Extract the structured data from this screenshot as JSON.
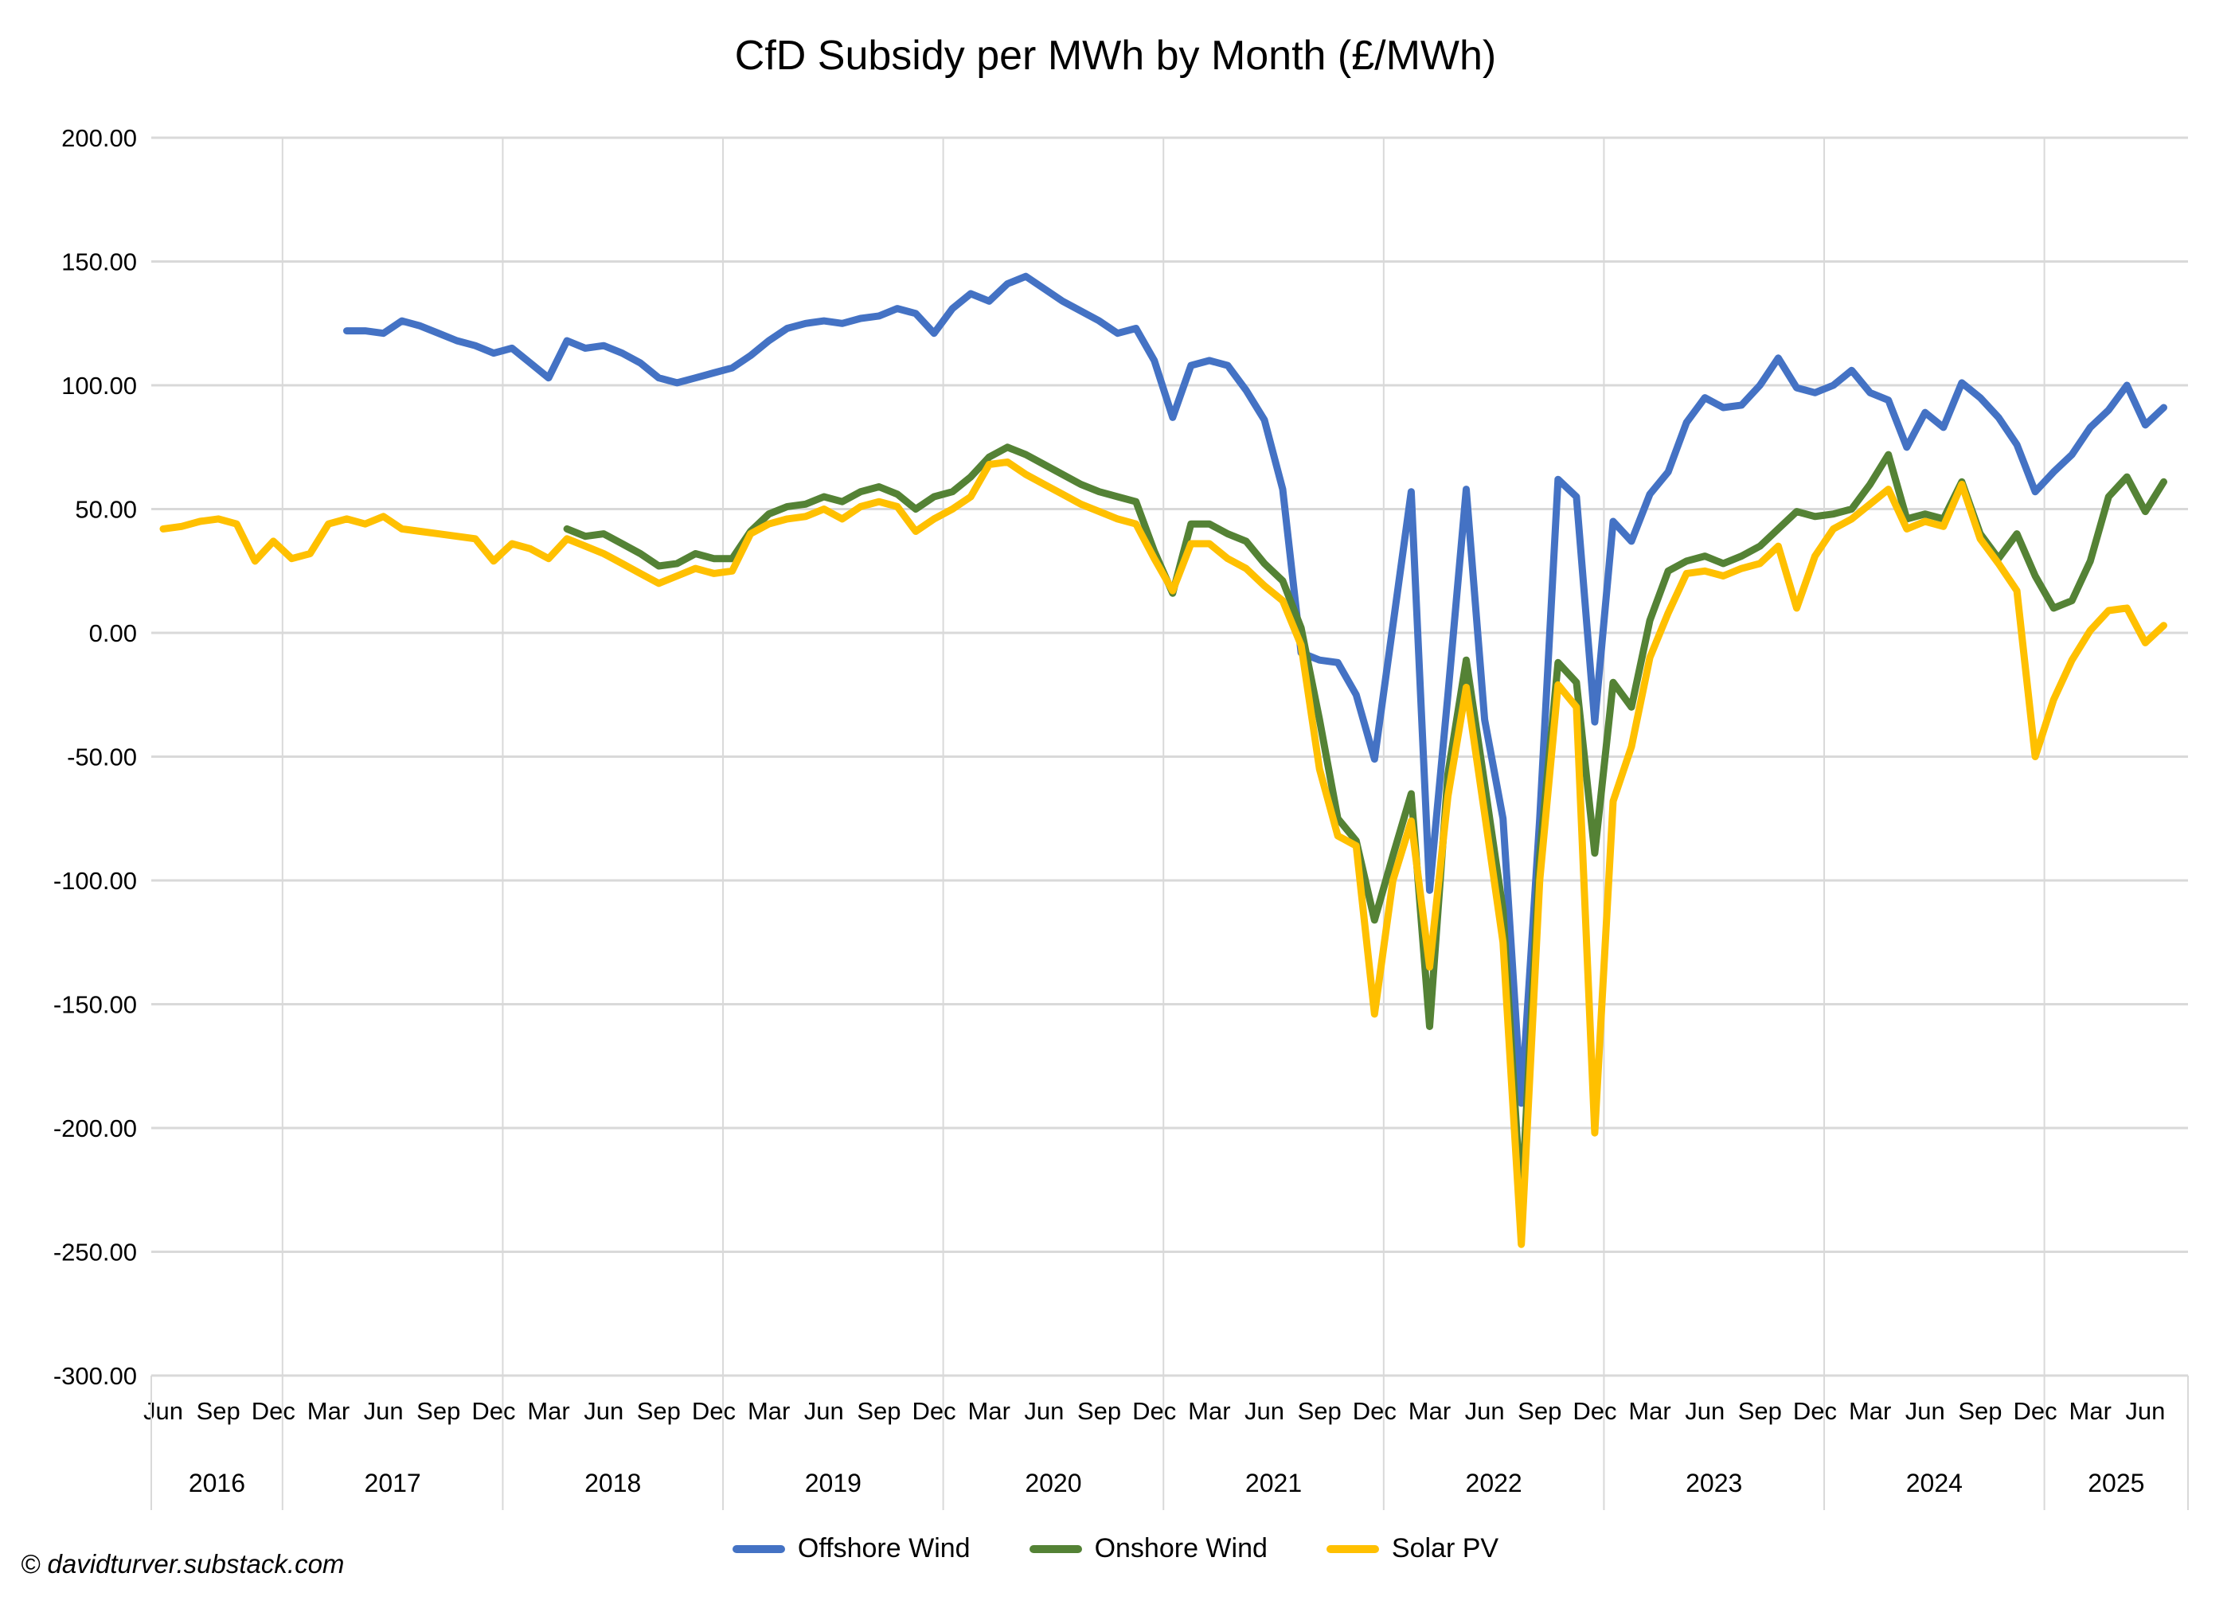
{
  "chart_data": {
    "type": "line",
    "title": "CfD Subsidy per MWh by Month (£/MWh)",
    "xlabel": "",
    "ylabel": "",
    "ylim": [
      -300,
      200
    ],
    "ytick_step": 50,
    "ytick_format": "2dp",
    "grid": true,
    "legend_position": "bottom",
    "x_monthly": [
      "2016-06",
      "2016-07",
      "2016-08",
      "2016-09",
      "2016-10",
      "2016-11",
      "2016-12",
      "2017-01",
      "2017-02",
      "2017-03",
      "2017-04",
      "2017-05",
      "2017-06",
      "2017-07",
      "2017-08",
      "2017-09",
      "2017-10",
      "2017-11",
      "2017-12",
      "2018-01",
      "2018-02",
      "2018-03",
      "2018-04",
      "2018-05",
      "2018-06",
      "2018-07",
      "2018-08",
      "2018-09",
      "2018-10",
      "2018-11",
      "2018-12",
      "2019-01",
      "2019-02",
      "2019-03",
      "2019-04",
      "2019-05",
      "2019-06",
      "2019-07",
      "2019-08",
      "2019-09",
      "2019-10",
      "2019-11",
      "2019-12",
      "2020-01",
      "2020-02",
      "2020-03",
      "2020-04",
      "2020-05",
      "2020-06",
      "2020-07",
      "2020-08",
      "2020-09",
      "2020-10",
      "2020-11",
      "2020-12",
      "2021-01",
      "2021-02",
      "2021-03",
      "2021-04",
      "2021-05",
      "2021-06",
      "2021-07",
      "2021-08",
      "2021-09",
      "2021-10",
      "2021-11",
      "2021-12",
      "2022-01",
      "2022-02",
      "2022-03",
      "2022-04",
      "2022-05",
      "2022-06",
      "2022-07",
      "2022-08",
      "2022-09",
      "2022-10",
      "2022-11",
      "2022-12",
      "2023-01",
      "2023-02",
      "2023-03",
      "2023-04",
      "2023-05",
      "2023-06",
      "2023-07",
      "2023-08",
      "2023-09",
      "2023-10",
      "2023-11",
      "2023-12",
      "2024-01",
      "2024-02",
      "2024-03",
      "2024-04",
      "2024-05",
      "2024-06",
      "2024-07",
      "2024-08",
      "2024-09",
      "2024-10",
      "2024-11",
      "2024-12",
      "2025-01",
      "2025-02",
      "2025-03",
      "2025-04",
      "2025-05",
      "2025-06",
      "2025-07"
    ],
    "series": [
      {
        "name": "Offshore Wind",
        "color": "#4472C4",
        "values": [
          null,
          null,
          null,
          null,
          null,
          null,
          null,
          null,
          null,
          null,
          122,
          122,
          121,
          126,
          124,
          121,
          118,
          116,
          113,
          115,
          109,
          103,
          118,
          115,
          116,
          113,
          109,
          103,
          101,
          103,
          105,
          107,
          112,
          118,
          123,
          125,
          126,
          125,
          127,
          128,
          131,
          129,
          121,
          131,
          137,
          134,
          141,
          144,
          139,
          134,
          130,
          126,
          121,
          123,
          110,
          87,
          108,
          110,
          108,
          98,
          86,
          58,
          -8,
          -11,
          -12,
          -25,
          -51,
          3,
          57,
          -104,
          -25,
          58,
          -35,
          -75,
          -190,
          -75,
          62,
          55,
          -36,
          45,
          37,
          56,
          65,
          85,
          95,
          91,
          92,
          100,
          111,
          99,
          97,
          100,
          106,
          97,
          94,
          75,
          89,
          83,
          101,
          95,
          87,
          76,
          57,
          65,
          72,
          83,
          90,
          100,
          84,
          91
        ]
      },
      {
        "name": "Onshore Wind",
        "color": "#548235",
        "values": [
          null,
          null,
          null,
          null,
          null,
          null,
          null,
          null,
          null,
          null,
          null,
          null,
          null,
          null,
          null,
          null,
          null,
          null,
          null,
          null,
          null,
          null,
          42,
          39,
          40,
          36,
          32,
          27,
          28,
          32,
          30,
          30,
          41,
          48,
          51,
          52,
          55,
          53,
          57,
          59,
          56,
          50,
          55,
          57,
          63,
          71,
          75,
          72,
          68,
          64,
          60,
          57,
          55,
          53,
          33,
          16,
          44,
          44,
          40,
          37,
          28,
          21,
          2,
          -35,
          -75,
          -84,
          -116,
          -90,
          -65,
          -159,
          -57,
          -11,
          -61,
          -112,
          -232,
          -90,
          -12,
          -20,
          -89,
          -20,
          -30,
          5,
          25,
          29,
          31,
          28,
          31,
          35,
          42,
          49,
          47,
          48,
          50,
          60,
          72,
          46,
          48,
          46,
          61,
          40,
          30,
          40,
          23,
          10,
          13,
          29,
          55,
          63,
          49,
          61
        ]
      },
      {
        "name": "Solar PV",
        "color": "#FFC000",
        "values": [
          42,
          43,
          45,
          46,
          44,
          29,
          37,
          30,
          32,
          44,
          46,
          44,
          47,
          42,
          41,
          40,
          39,
          38,
          29,
          36,
          34,
          30,
          38,
          35,
          32,
          28,
          24,
          20,
          23,
          26,
          24,
          25,
          40,
          44,
          46,
          47,
          50,
          46,
          51,
          53,
          51,
          41,
          46,
          50,
          55,
          68,
          69,
          64,
          60,
          56,
          52,
          49,
          46,
          44,
          30,
          17,
          36,
          36,
          30,
          26,
          19,
          13,
          -5,
          -55,
          -82,
          -86,
          -154,
          -100,
          -76,
          -135,
          -66,
          -22,
          -73,
          -125,
          -247,
          -100,
          -21,
          -30,
          -202,
          -68,
          -46,
          -10,
          8,
          24,
          25,
          23,
          26,
          28,
          35,
          10,
          31,
          42,
          46,
          52,
          58,
          42,
          45,
          43,
          60,
          38,
          28,
          17,
          -50,
          -27,
          -11,
          1,
          9,
          10,
          -4,
          3
        ]
      }
    ]
  },
  "footer": {
    "copyright": "© davidturver.substack.com"
  }
}
